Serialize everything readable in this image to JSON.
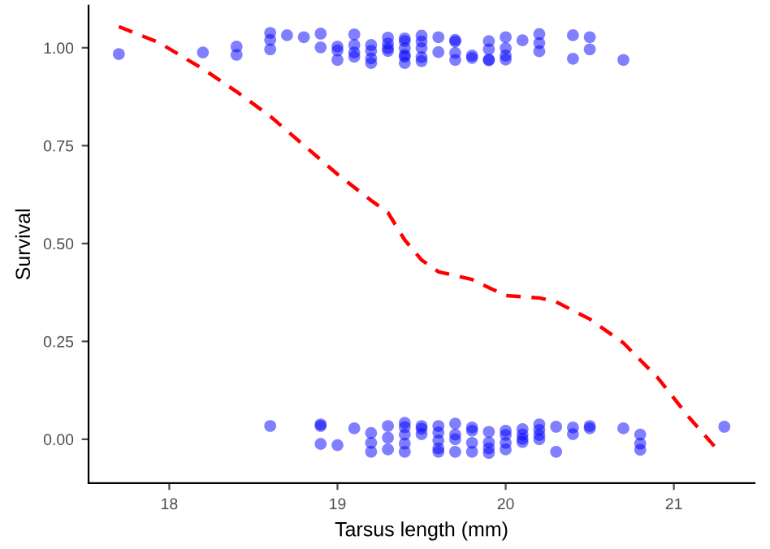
{
  "chart_data": {
    "type": "scatter",
    "xlabel": "Tarsus length (mm)",
    "ylabel": "Survival",
    "xlim": [
      17.52,
      21.48
    ],
    "ylim": [
      -0.112,
      1.108
    ],
    "xticks": [
      18,
      19,
      20,
      21
    ],
    "yticks": [
      {
        "value": 0,
        "label": "0.00"
      },
      {
        "value": 0.25,
        "label": "0.25"
      },
      {
        "value": 0.5,
        "label": "0.50"
      },
      {
        "value": 0.75,
        "label": "0.75"
      },
      {
        "value": 1,
        "label": "1.00"
      }
    ],
    "grid": false,
    "legend": false,
    "marker": "circle",
    "series": [
      {
        "color": "#0000ff",
        "x": [
          17.7,
          18.2,
          18.4,
          18.4,
          18.6,
          18.6,
          18.6,
          18.7,
          18.8,
          18.9,
          18.9,
          19.0,
          19.0,
          19.0,
          19.1,
          19.1,
          19.1,
          19.1,
          19.2,
          19.2,
          19.2,
          19.2,
          19.3,
          19.3,
          19.3,
          19.3,
          19.4,
          19.4,
          19.4,
          19.4,
          19.4,
          19.4,
          19.5,
          19.5,
          19.5,
          19.5,
          19.5,
          19.6,
          19.6,
          19.7,
          19.7,
          19.7,
          19.7,
          19.8,
          19.8,
          19.9,
          19.9,
          19.9,
          19.9,
          20.0,
          20.0,
          20.0,
          20.0,
          20.1,
          20.2,
          20.2,
          20.2,
          20.4,
          20.4,
          20.5,
          20.5,
          20.7,
          18.6,
          18.9,
          18.9,
          18.9,
          19.0,
          19.1,
          19.2,
          19.2,
          19.2,
          19.3,
          19.3,
          19.3,
          19.4,
          19.4,
          19.4,
          19.4,
          19.4,
          19.5,
          19.5,
          19.5,
          19.6,
          19.6,
          19.6,
          19.6,
          19.6,
          19.7,
          19.7,
          19.7,
          19.7,
          19.8,
          19.8,
          19.8,
          19.8,
          19.9,
          19.9,
          19.9,
          19.9,
          20.0,
          20.0,
          20.0,
          20.0,
          20.1,
          20.1,
          20.1,
          20.1,
          20.2,
          20.2,
          20.2,
          20.2,
          20.3,
          20.3,
          20.4,
          20.4,
          20.5,
          20.5,
          20.7,
          20.8,
          20.8,
          20.8,
          21.3
        ],
        "values": [
          0.984,
          0.988,
          1.003,
          0.982,
          1.038,
          1.02,
          0.996,
          1.032,
          1.027,
          1.036,
          1.001,
          1.003,
          0.993,
          0.969,
          1.034,
          1.007,
          0.988,
          0.977,
          1.007,
          0.992,
          0.973,
          0.961,
          1.026,
          1.011,
          0.999,
          0.992,
          1.024,
          1.017,
          0.999,
          0.982,
          0.977,
          0.961,
          1.031,
          1.016,
          0.999,
          0.976,
          0.966,
          1.027,
          0.989,
          1.02,
          1.016,
          0.987,
          0.969,
          0.98,
          0.974,
          1.017,
          0.996,
          0.97,
          0.968,
          1.027,
          0.999,
          0.98,
          0.97,
          1.019,
          1.035,
          1.012,
          0.991,
          1.032,
          0.972,
          1.027,
          0.996,
          0.969,
          0.034,
          0.038,
          0.034,
          -0.012,
          -0.015,
          0.028,
          0.016,
          -0.009,
          -0.032,
          0.034,
          0.004,
          -0.026,
          0.042,
          0.031,
          0.012,
          -0.011,
          -0.032,
          0.034,
          0.027,
          0.013,
          0.034,
          0.017,
          -0.003,
          -0.023,
          -0.032,
          0.04,
          0.012,
          0.0,
          -0.032,
          0.03,
          0.022,
          -0.009,
          -0.032,
          0.019,
          -0.008,
          -0.023,
          -0.035,
          0.022,
          0.011,
          -0.009,
          -0.026,
          0.026,
          0.012,
          0.001,
          -0.007,
          0.038,
          0.024,
          0.011,
          0.0,
          0.032,
          -0.032,
          0.03,
          0.013,
          0.034,
          0.028,
          0.028,
          0.012,
          -0.011,
          -0.027,
          0.032
        ]
      },
      {
        "type": "line",
        "color": "#ff0000",
        "line_style": "dashed",
        "marker": "none",
        "x": [
          17.7,
          17.94,
          18.2,
          18.4,
          18.6,
          18.8,
          19.0,
          19.2,
          19.3,
          19.4,
          19.5,
          19.6,
          19.8,
          20.0,
          20.2,
          20.3,
          20.5,
          20.7,
          20.9,
          21.1,
          21.27
        ],
        "values": [
          1.054,
          1.013,
          0.946,
          0.888,
          0.825,
          0.751,
          0.677,
          0.61,
          0.579,
          0.509,
          0.458,
          0.428,
          0.408,
          0.367,
          0.361,
          0.351,
          0.307,
          0.246,
          0.159,
          0.051,
          -0.032
        ]
      }
    ]
  }
}
